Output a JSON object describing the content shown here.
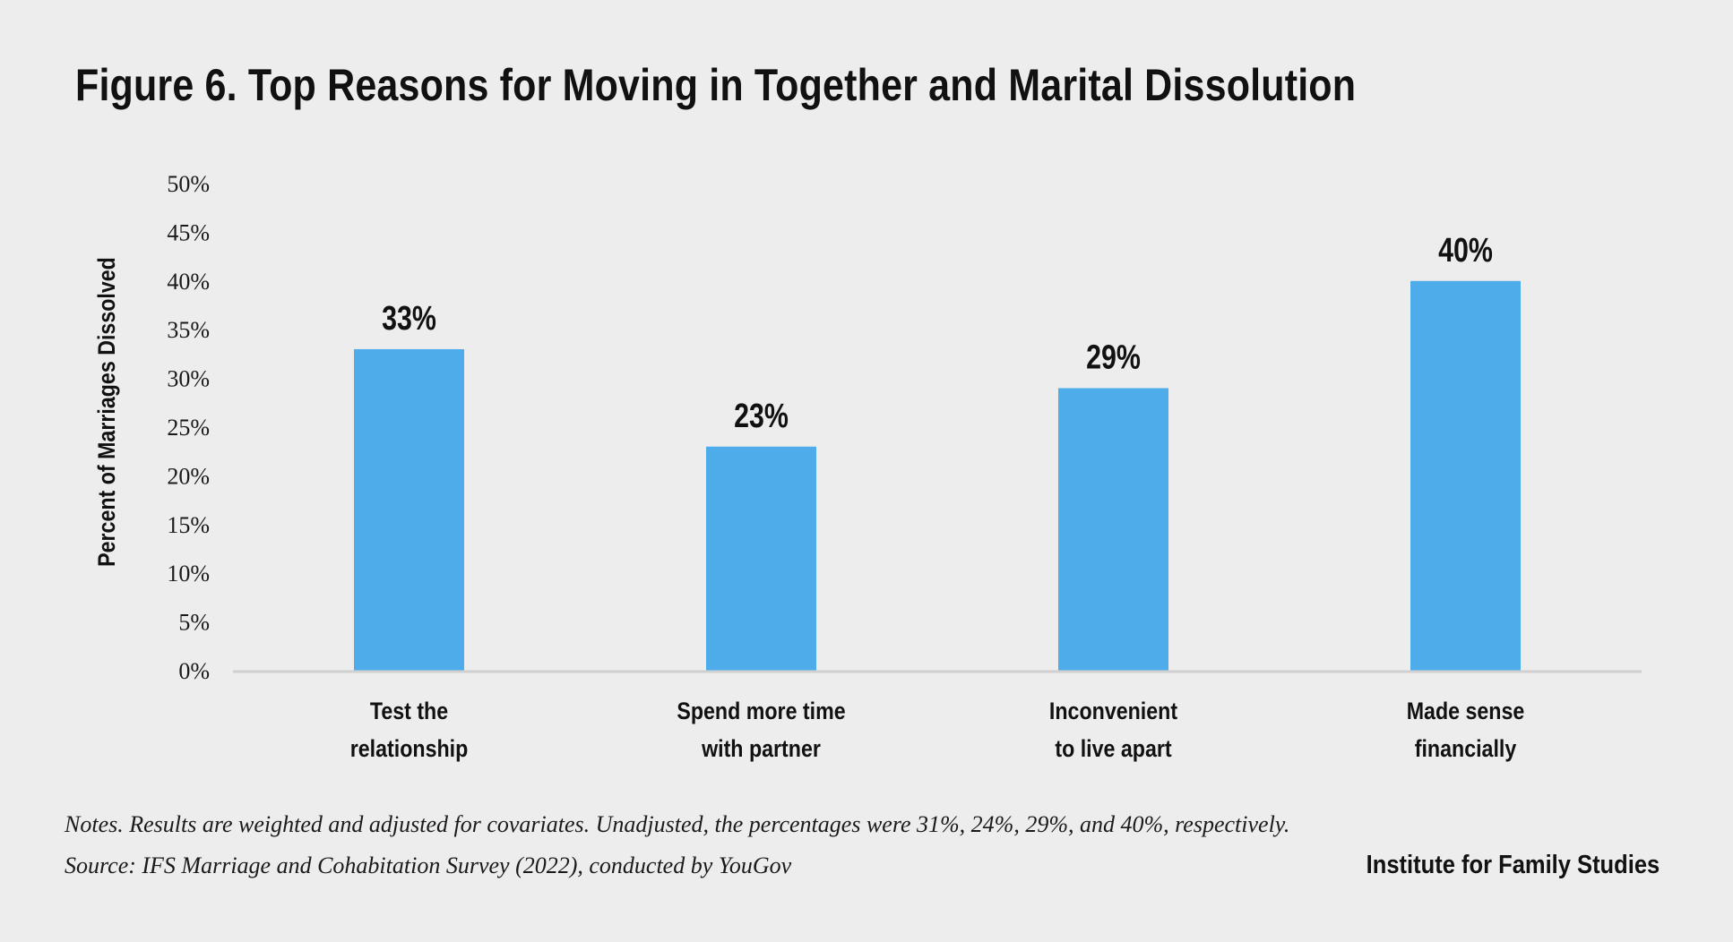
{
  "title": "Figure 6. Top Reasons for Moving in Together and Marital Dissolution",
  "chart_data": {
    "type": "bar",
    "title": "Figure 6. Top Reasons for Moving in Together and Marital Dissolution",
    "categories": [
      [
        "Test the",
        "relationship"
      ],
      [
        "Spend more time",
        "with partner"
      ],
      [
        "Inconvenient",
        "to live apart"
      ],
      [
        "Made sense",
        "financially"
      ]
    ],
    "values": [
      33,
      23,
      29,
      40
    ],
    "value_labels": [
      "33%",
      "23%",
      "29%",
      "40%"
    ],
    "ylabel": "Percent of Marriages Dissolved",
    "xlabel": "",
    "ylim": [
      0,
      50
    ],
    "yticks": [
      0,
      5,
      10,
      15,
      20,
      25,
      30,
      35,
      40,
      45,
      50
    ],
    "ytick_labels": [
      "0%",
      "5%",
      "10%",
      "15%",
      "20%",
      "25%",
      "30%",
      "35%",
      "40%",
      "45%",
      "50%"
    ],
    "grid": false,
    "bar_color": "#4facea",
    "axis_color": "#d0d0d0"
  },
  "footer": {
    "notes": "Notes. Results are weighted and adjusted for covariates. Unadjusted, the percentages were 31%, 24%, 29%, and 40%, respectively.",
    "source": "Source: IFS Marriage and Cohabitation Survey (2022), conducted by YouGov",
    "credit": "Institute for Family Studies"
  }
}
